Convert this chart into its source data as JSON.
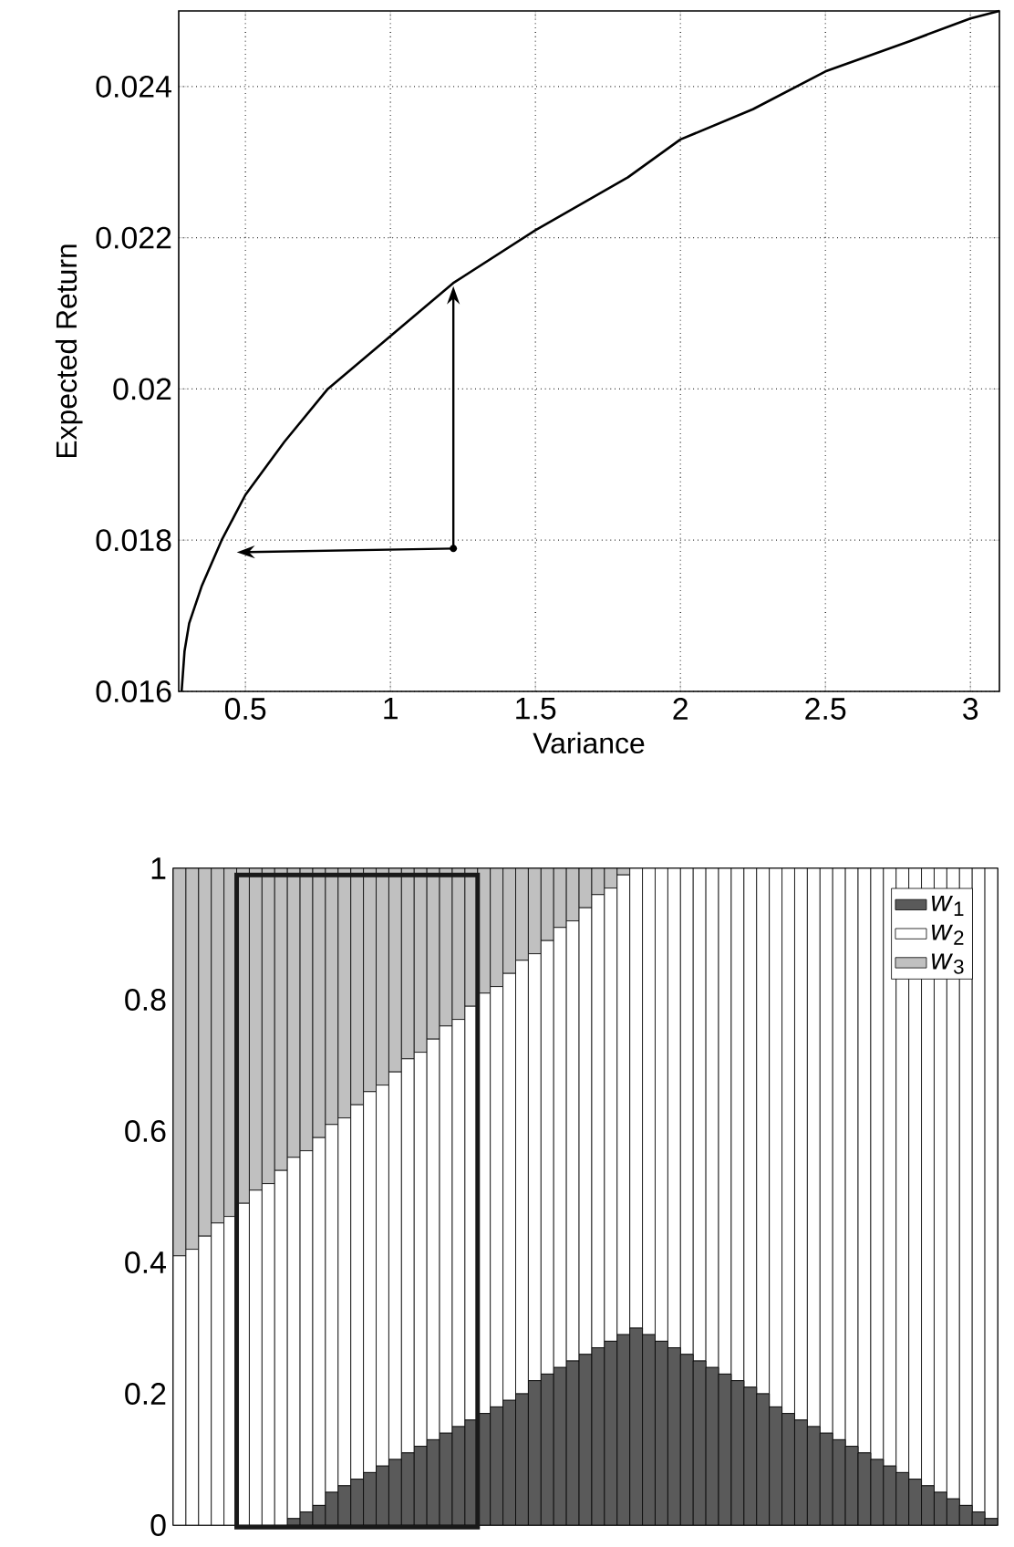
{
  "chart_data": [
    {
      "type": "line",
      "xlabel": "Variance",
      "ylabel": "Expected Return",
      "xlim": [
        0.27,
        3.1
      ],
      "ylim": [
        0.016,
        0.025
      ],
      "xticks": [
        0.5,
        1,
        1.5,
        2,
        2.5,
        3
      ],
      "yticks": [
        0.016,
        0.018,
        0.02,
        0.022,
        0.024
      ],
      "grid": true,
      "series": [
        {
          "color": "#000000",
          "x": [
            0.28,
            0.29,
            0.306,
            0.35,
            0.418,
            0.5,
            0.634,
            0.784,
            1.0,
            1.216,
            1.5,
            1.819,
            2.0,
            2.25,
            2.5,
            2.79,
            3.0,
            3.1
          ],
          "values": [
            0.016,
            0.01653,
            0.0169,
            0.0174,
            0.018,
            0.0186,
            0.0193,
            0.02,
            0.0207,
            0.0214,
            0.0221,
            0.0228,
            0.0233,
            0.0237,
            0.0242,
            0.0246,
            0.0249,
            0.025
          ]
        }
      ]
    },
    {
      "type": "bar",
      "stacked": true,
      "ylim": [
        0,
        1
      ],
      "yticks": [
        0,
        0.2,
        0.4,
        0.6,
        0.8,
        1
      ],
      "tick_labels": "y",
      "legend": "top right",
      "categories": [
        null,
        null,
        null,
        null,
        null,
        null,
        null,
        null,
        null,
        null,
        null,
        null,
        null,
        null,
        null,
        null,
        null,
        null,
        null,
        null,
        null,
        null,
        null,
        null,
        null,
        null,
        null,
        null,
        null,
        null,
        null,
        null,
        null,
        null,
        null,
        null,
        null,
        null,
        null,
        null,
        null,
        null,
        null,
        null,
        null,
        null,
        null,
        null,
        null,
        null,
        null,
        null,
        null,
        null,
        null,
        null,
        null,
        null,
        null,
        null,
        null,
        null,
        null,
        null,
        null
      ],
      "series": [
        {
          "name": "*w*$_{1}$",
          "color": "#5a5a5a",
          "values": [
            0,
            0,
            0,
            0,
            0,
            0,
            0,
            0,
            0,
            0.01,
            0.02,
            0.03,
            0.05,
            0.06,
            0.07,
            0.08,
            0.09,
            0.1,
            0.11,
            0.12,
            0.13,
            0.14,
            0.15,
            0.16,
            0.17,
            0.18,
            0.19,
            0.2,
            0.22,
            0.23,
            0.24,
            0.25,
            0.26,
            0.27,
            0.28,
            0.29,
            0.3,
            0.29,
            0.28,
            0.27,
            0.26,
            0.25,
            0.24,
            0.23,
            0.22,
            0.21,
            0.2,
            0.18,
            0.17,
            0.16,
            0.15,
            0.14,
            0.13,
            0.12,
            0.11,
            0.1,
            0.09,
            0.08,
            0.07,
            0.06,
            0.05,
            0.04,
            0.03,
            0.02,
            0.01
          ]
        },
        {
          "name": "*w*$_{2}$",
          "color": "#ffffff",
          "values": [
            0.41,
            0.42,
            0.44,
            0.46,
            0.47,
            0.49,
            0.51,
            0.52,
            0.54,
            0.55,
            0.55,
            0.56,
            0.56,
            0.56,
            0.57,
            0.58,
            0.58,
            0.59,
            0.6,
            0.6,
            0.61,
            0.62,
            0.62,
            0.63,
            0.64,
            0.64,
            0.65,
            0.66,
            0.65,
            0.66,
            0.67,
            0.67,
            0.68,
            0.69,
            0.69,
            0.7,
            0.7,
            0.71,
            0.72,
            0.73,
            0.74,
            0.75,
            0.76,
            0.77,
            0.78,
            0.79,
            0.8,
            0.82,
            0.83,
            0.84,
            0.85,
            0.86,
            0.87,
            0.88,
            0.89,
            0.9,
            0.91,
            0.92,
            0.93,
            0.94,
            0.95,
            0.96,
            0.97,
            0.98,
            0.99
          ]
        },
        {
          "name": "*w*$_{3}$",
          "color": "#c0c0c0",
          "values": [
            0.59,
            0.58,
            0.56,
            0.54,
            0.53,
            0.51,
            0.49,
            0.48,
            0.46,
            0.44,
            0.43,
            0.41,
            0.39,
            0.38,
            0.36,
            0.34,
            0.33,
            0.31,
            0.29,
            0.28,
            0.26,
            0.24,
            0.23,
            0.21,
            0.19,
            0.18,
            0.16,
            0.14,
            0.13,
            0.11,
            0.09,
            0.08,
            0.06,
            0.04,
            0.03,
            0.01,
            0,
            0,
            0,
            0,
            0,
            0,
            0,
            0,
            0,
            0,
            0,
            0,
            0,
            0,
            0,
            0,
            0,
            0,
            0,
            0,
            0,
            0,
            0,
            0,
            0,
            0,
            0,
            0,
            0
          ]
        }
      ]
    }
  ]
}
